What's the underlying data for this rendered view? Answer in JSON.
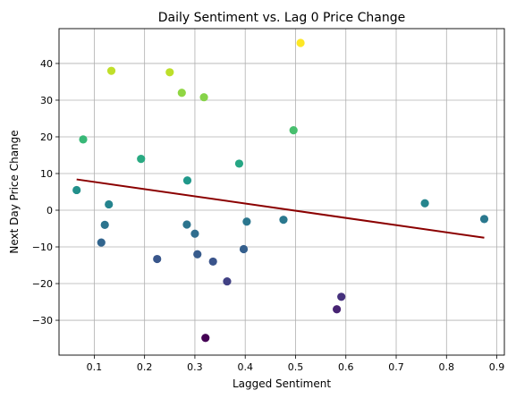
{
  "chart_data": {
    "type": "scatter",
    "title": "Daily Sentiment vs. Lag 0 Price Change",
    "xlabel": "Lagged Sentiment",
    "ylabel": "Next Day Price Change",
    "xlim": [
      0.03,
      0.915
    ],
    "ylim": [
      -39.5,
      49.5
    ],
    "xticks": [
      0.1,
      0.2,
      0.3,
      0.4,
      0.5,
      0.6,
      0.7,
      0.8,
      0.9
    ],
    "xtick_labels": [
      "0.1",
      "0.2",
      "0.3",
      "0.4",
      "0.5",
      "0.6",
      "0.7",
      "0.8",
      "0.9"
    ],
    "yticks": [
      -30,
      -20,
      -10,
      0,
      10,
      20,
      30,
      40
    ],
    "ytick_labels": [
      "−30",
      "−20",
      "−10",
      "0",
      "10",
      "20",
      "30",
      "40"
    ],
    "grid": true,
    "colormap": "viridis",
    "color_encodes": "y value",
    "points": [
      {
        "x": 0.065,
        "y": 5.5
      },
      {
        "x": 0.078,
        "y": 19.3
      },
      {
        "x": 0.114,
        "y": -8.8
      },
      {
        "x": 0.121,
        "y": -4.0
      },
      {
        "x": 0.129,
        "y": 1.6
      },
      {
        "x": 0.134,
        "y": 38.0
      },
      {
        "x": 0.193,
        "y": 14.0
      },
      {
        "x": 0.225,
        "y": -13.3
      },
      {
        "x": 0.25,
        "y": 37.6
      },
      {
        "x": 0.274,
        "y": 32.0
      },
      {
        "x": 0.284,
        "y": -3.9
      },
      {
        "x": 0.285,
        "y": 8.1
      },
      {
        "x": 0.3,
        "y": -6.4
      },
      {
        "x": 0.305,
        "y": -12.0
      },
      {
        "x": 0.318,
        "y": 30.8
      },
      {
        "x": 0.321,
        "y": -34.8
      },
      {
        "x": 0.336,
        "y": -14.0
      },
      {
        "x": 0.364,
        "y": -19.4
      },
      {
        "x": 0.388,
        "y": 12.7
      },
      {
        "x": 0.397,
        "y": -10.6
      },
      {
        "x": 0.403,
        "y": -3.1
      },
      {
        "x": 0.476,
        "y": -2.6
      },
      {
        "x": 0.496,
        "y": 21.8
      },
      {
        "x": 0.51,
        "y": 45.6
      },
      {
        "x": 0.582,
        "y": -27.0
      },
      {
        "x": 0.591,
        "y": -23.6
      },
      {
        "x": 0.757,
        "y": 1.9
      },
      {
        "x": 0.875,
        "y": -2.4
      }
    ],
    "trendline": {
      "color": "#8b0000",
      "x": [
        0.065,
        0.875
      ],
      "y": [
        8.4,
        -7.5
      ]
    },
    "colors": {
      "grid": "#b0b0b0",
      "axes": "#000000"
    }
  }
}
